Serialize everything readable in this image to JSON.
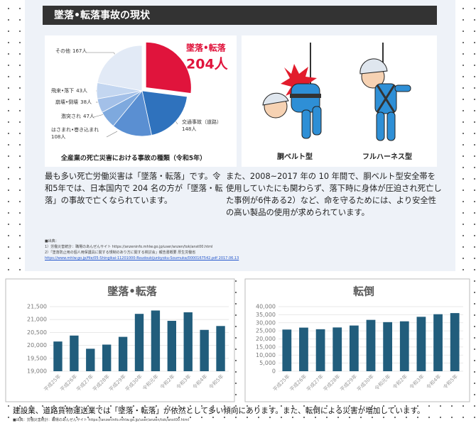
{
  "header": {
    "title": "墜落•転落事故の現状"
  },
  "chart_data": [
    {
      "type": "pie",
      "title": "全産業の死亡災害における事故の種類（令和5年）",
      "categories": [
        "墜落•転落",
        "交通事故（道路）",
        "はさまれ•巻き込まれ",
        "激突され",
        "崩壊•倒壊",
        "飛来•落下",
        "その他"
      ],
      "values": [
        204,
        148,
        108,
        47,
        38,
        43,
        167
      ],
      "value_labels": [
        "204人",
        "148人",
        "108人",
        "47人",
        "38人",
        "43人",
        "167人"
      ],
      "colors": [
        "#e0143c",
        "#2f72bd",
        "#5a8fd2",
        "#7ea9de",
        "#a3c0e8",
        "#c3d6f0",
        "#e2eaf6"
      ]
    },
    {
      "type": "bar",
      "title": "墜落•転落",
      "categories": [
        "平成25年",
        "平成26年",
        "平成27年",
        "平成28年",
        "平成29年",
        "平成30年",
        "令和元年",
        "令和2年",
        "令和3年",
        "令和4年",
        "令和5年"
      ],
      "values": [
        20150,
        20380,
        19870,
        20030,
        20330,
        21220,
        21350,
        20950,
        21280,
        20600,
        20750
      ],
      "color": "#215d7c",
      "ylim": [
        19000,
        21500
      ],
      "yticks": [
        {
          "value": 19000,
          "label": "19,000"
        },
        {
          "value": 19500,
          "label": "19,500"
        },
        {
          "value": 20000,
          "label": "20,000"
        },
        {
          "value": 20500,
          "label": "20,500"
        },
        {
          "value": 21000,
          "label": "21,000"
        },
        {
          "value": 21500,
          "label": "21,500"
        }
      ],
      "grid": true
    },
    {
      "type": "bar",
      "title": "転倒",
      "categories": [
        "平成25年",
        "平成26年",
        "平成27年",
        "平成28年",
        "平成29年",
        "平成30年",
        "令和元年",
        "令和2年",
        "令和3年",
        "令和4年",
        "令和5年"
      ],
      "values": [
        25800,
        27000,
        26000,
        27100,
        28300,
        31800,
        30400,
        30900,
        33700,
        35300,
        36000
      ],
      "color": "#215d7c",
      "ylim": [
        0,
        40000
      ],
      "yticks": [
        0,
        {
          "value": 5000,
          "label": "5,000"
        },
        {
          "value": 10000,
          "label": "10,000"
        },
        {
          "value": 15000,
          "label": "15,000"
        },
        {
          "value": 20000,
          "label": "20,000"
        },
        {
          "value": 25000,
          "label": "25,000"
        },
        {
          "value": 30000,
          "label": "30,000"
        },
        {
          "value": 35000,
          "label": "35,000"
        },
        {
          "value": 40000,
          "label": "40,000"
        }
      ],
      "grid": true
    }
  ],
  "illustration": {
    "labels": [
      "胴ベルト型",
      "フルハーネス型"
    ]
  },
  "paragraphs": {
    "left": "最も多い死亡労働災害は「墜落・転落」です。令和5年では、日本国内で 204 名の方が「墜落・転落」の事故で亡くなられています。",
    "right": "また、2008~2017 年の 10 年間で、胴ベルト型安全帯を使用していたにも関わらず、落下時に身体が圧迫され死亡した事例が6件ある2）など、命を守るためには、より安全性の高い製品の使用が求められています。"
  },
  "footnote": {
    "heading": "■出典：",
    "items": [
      "1）労働災害統計：職場のあんぜんサイト https://anzeninfo.mhlw.go.jp/user/anzen/tok/anst00.html",
      "2）「墜落防止用の個人用保護具に関する規制のあり方に関する検討会」報告書概要 厚生労働省"
    ],
    "link": "https://www.mhlw.go.jp/file/05-Shingikai-11201000-Roudoukijunkyoku-Soumuka/0000167542.pdf 2017.06.13"
  },
  "summary": "建設業、道路貨物運送業では「墜落・転落」が依然として多い傾向にあります。また、転倒による災害が増加しています。",
  "source": "■出典：労働災害統計：職場のあんぜんサイト https://anzeninfo.mhlw.go.jp/user/anzen/tok/anst00.html"
}
